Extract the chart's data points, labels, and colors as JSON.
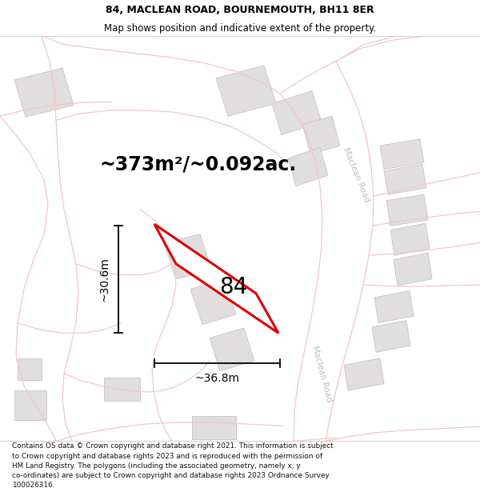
{
  "title": "84, MACLEAN ROAD, BOURNEMOUTH, BH11 8ER",
  "subtitle": "Map shows position and indicative extent of the property.",
  "footer": "Contains OS data © Crown copyright and database right 2021. This information is subject to Crown copyright and database rights 2023 and is reproduced with the permission of HM Land Registry. The polygons (including the associated geometry, namely x, y co-ordinates) are subject to Crown copyright and database rights 2023 Ordnance Survey 100026316.",
  "area_label": "~373m²/~0.092ac.",
  "number_label": "84",
  "dim_width": "~36.8m",
  "dim_height": "~30.6m",
  "bg_color": "#ffffff",
  "map_bg": "#f9f7f7",
  "title_fontsize": 9,
  "subtitle_fontsize": 8.5,
  "footer_fontsize": 6.4,
  "area_fontsize": 17,
  "number_fontsize": 20,
  "dim_fontsize": 10,
  "road_label_color": "#c0bebe",
  "road_color": "#f0c8c8",
  "bldg_face": "#e0dede",
  "bldg_edge": "#c8c4c4",
  "red_color": "#dd0000"
}
